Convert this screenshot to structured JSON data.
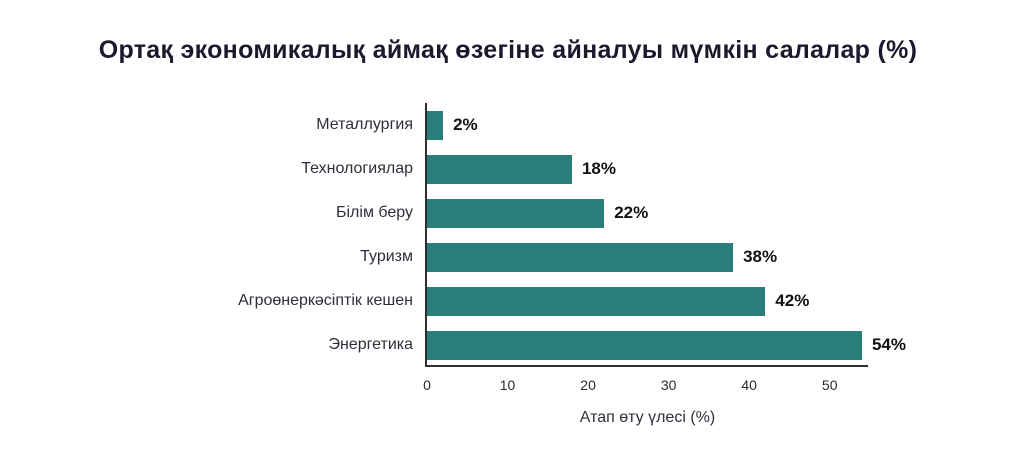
{
  "chart_data": {
    "type": "bar",
    "orientation": "horizontal",
    "title": "Ортақ экономикалық аймақ өзегіне айналуы мүмкін салалар (%)",
    "categories": [
      "Металлургия",
      "Технологиялар",
      "Білім беру",
      "Туризм",
      "Агроөнеркәсіптік кешен",
      "Энергетика"
    ],
    "values": [
      2,
      18,
      22,
      38,
      42,
      54
    ],
    "value_labels": [
      "2%",
      "18%",
      "22%",
      "38%",
      "42%",
      "54%"
    ],
    "xlabel": "Атап өту үлесі (%)",
    "x_ticks": [
      0,
      10,
      20,
      30,
      40,
      50
    ],
    "xlim": [
      0,
      55
    ],
    "bar_color": "#2a7e79",
    "grid": false,
    "legend": false,
    "background_color": "#ffffff",
    "title_color": "#1a1a2e"
  }
}
